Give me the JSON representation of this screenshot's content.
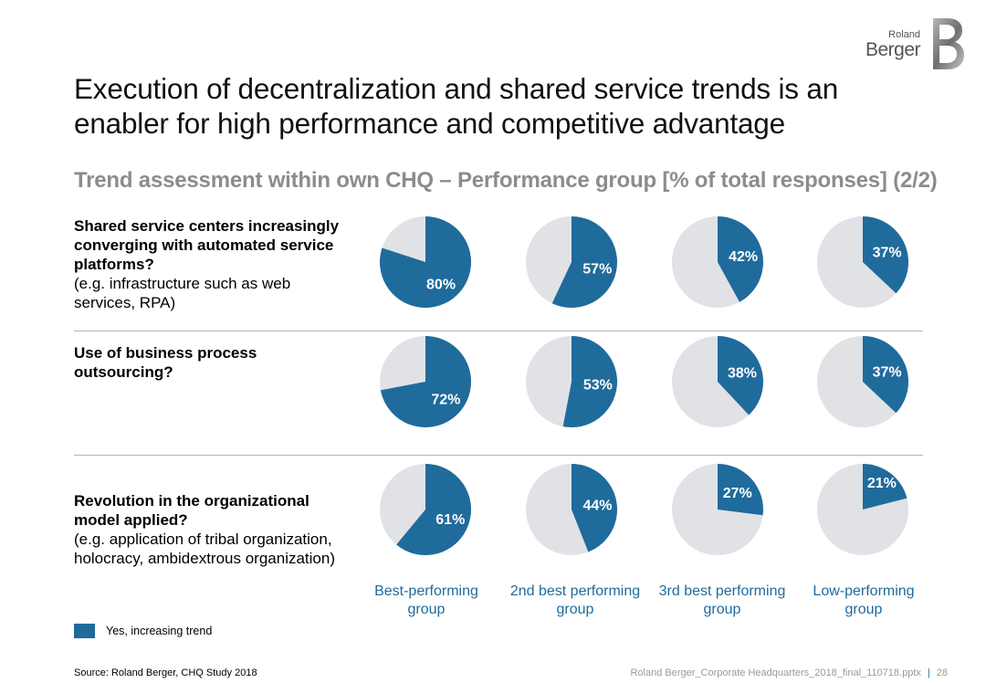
{
  "logo": {
    "line1": "Roland",
    "line2": "Berger"
  },
  "title": "Execution of decentralization and shared service trends is an enabler for high performance and competitive advantage",
  "subtitle": "Trend assessment within own CHQ – Performance group [% of total responses] (2/2)",
  "rows": [
    {
      "question": "Shared service centers increasingly converging with automated service platforms?",
      "detail": "(e.g. infrastructure such as web services, RPA)"
    },
    {
      "question": "Use of business process outsourcing?",
      "detail": ""
    },
    {
      "question": "Revolution in the organizational model applied?",
      "detail": "(e.g. application of tribal organization, holocracy, ambidextrous organization)"
    }
  ],
  "groups": [
    "Best-performing group",
    "2nd best performing group",
    "3rd best performing group",
    "Low-performing group"
  ],
  "legend": {
    "label": "Yes, increasing trend"
  },
  "source": "Source: Roland Berger, CHQ Study 2018",
  "footer": {
    "file": "Roland Berger_Corporate Headquarters_2018_final_110718.pptx",
    "page": "28"
  },
  "colors": {
    "accent": "#1f6b9c",
    "remainder": "#e1e2e6"
  },
  "chart_data": {
    "type": "pie",
    "title": "Trend assessment within own CHQ – Performance group [% of total responses] (2/2)",
    "unit": "%",
    "series_label": "Yes, increasing trend",
    "categories": [
      "Best-performing group",
      "2nd best performing group",
      "3rd best performing group",
      "Low-performing group"
    ],
    "rows": [
      {
        "name": "Shared service centers increasingly converging with automated service platforms?",
        "values": [
          80,
          57,
          42,
          37
        ]
      },
      {
        "name": "Use of business process outsourcing?",
        "values": [
          72,
          53,
          38,
          37
        ]
      },
      {
        "name": "Revolution in the organizational model applied?",
        "values": [
          61,
          44,
          27,
          21
        ]
      }
    ]
  }
}
